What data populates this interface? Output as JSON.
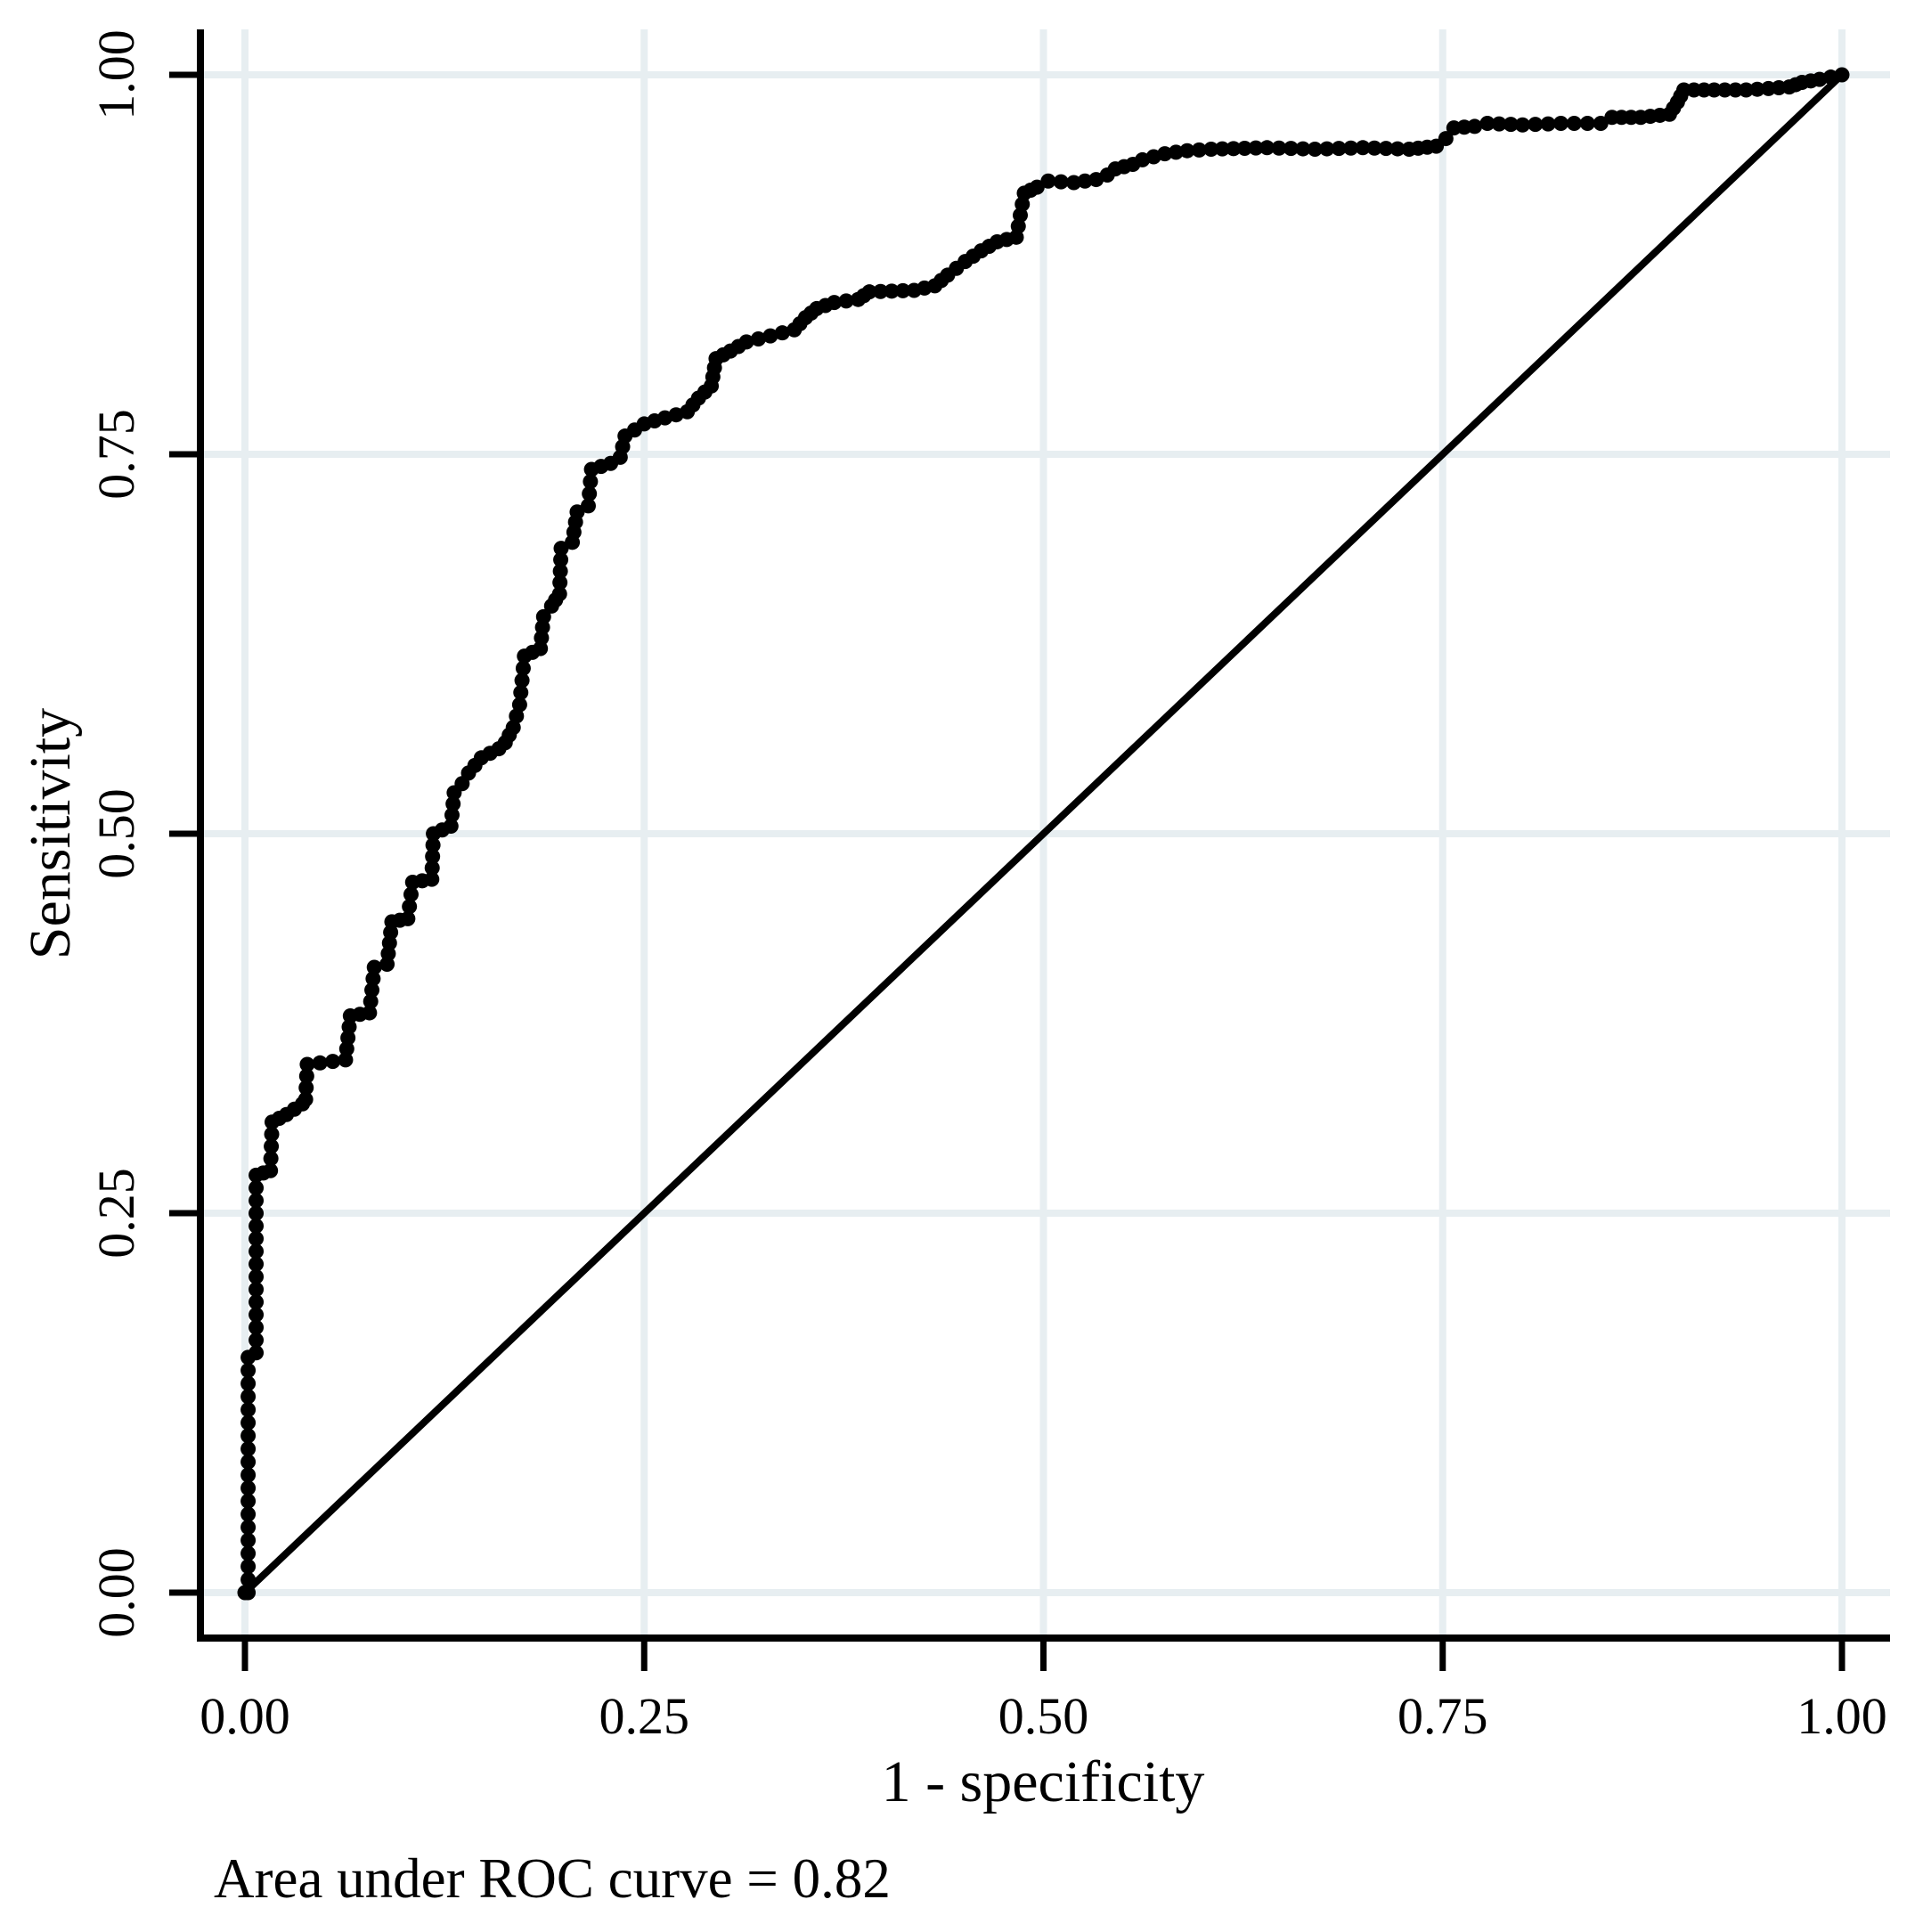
{
  "figure": {
    "caption": "Area under ROC curve = 0.82"
  },
  "chart_data": {
    "type": "line",
    "title": "",
    "xlabel": "1 - specificity",
    "ylabel": "Sensitivity",
    "xlim": [
      0,
      1
    ],
    "ylim": [
      0,
      1
    ],
    "grid": true,
    "legend_position": "none",
    "auc": 0.82,
    "annotations": [
      "Area under ROC curve = 0.82"
    ],
    "xticks": {
      "values": [
        0,
        0.25,
        0.5,
        0.75,
        1
      ],
      "labels": [
        "0.00",
        "0.25",
        "0.50",
        "0.75",
        "1.00"
      ]
    },
    "yticks": {
      "values": [
        0,
        0.25,
        0.5,
        0.75,
        1
      ],
      "labels": [
        "0.00",
        "0.25",
        "0.50",
        "0.75",
        "1.00"
      ]
    },
    "colors": {
      "curve": "#000000",
      "reference_line": "#000000",
      "axis": "#000000",
      "gridline": "#e7eef1",
      "background": "#ffffff"
    },
    "series": [
      {
        "name": "ROC curve",
        "type": "step-scatter",
        "color": "#000000",
        "points": [
          [
            0.0,
            0.0
          ],
          [
            0.002,
            0.0
          ],
          [
            0.002,
            0.155
          ],
          [
            0.007,
            0.158
          ],
          [
            0.007,
            0.275
          ],
          [
            0.016,
            0.278
          ],
          [
            0.017,
            0.31
          ],
          [
            0.026,
            0.315
          ],
          [
            0.036,
            0.322
          ],
          [
            0.038,
            0.325
          ],
          [
            0.039,
            0.348
          ],
          [
            0.063,
            0.351
          ],
          [
            0.066,
            0.38
          ],
          [
            0.078,
            0.382
          ],
          [
            0.081,
            0.412
          ],
          [
            0.089,
            0.414
          ],
          [
            0.092,
            0.442
          ],
          [
            0.102,
            0.444
          ],
          [
            0.105,
            0.468
          ],
          [
            0.117,
            0.47
          ],
          [
            0.118,
            0.5
          ],
          [
            0.129,
            0.505
          ],
          [
            0.131,
            0.527
          ],
          [
            0.136,
            0.533
          ],
          [
            0.14,
            0.54
          ],
          [
            0.148,
            0.55
          ],
          [
            0.159,
            0.556
          ],
          [
            0.163,
            0.56
          ],
          [
            0.168,
            0.57
          ],
          [
            0.172,
            0.585
          ],
          [
            0.175,
            0.617
          ],
          [
            0.185,
            0.622
          ],
          [
            0.187,
            0.643
          ],
          [
            0.192,
            0.65
          ],
          [
            0.197,
            0.658
          ],
          [
            0.198,
            0.688
          ],
          [
            0.205,
            0.692
          ],
          [
            0.208,
            0.712
          ],
          [
            0.215,
            0.716
          ],
          [
            0.217,
            0.74
          ],
          [
            0.229,
            0.744
          ],
          [
            0.235,
            0.748
          ],
          [
            0.238,
            0.762
          ],
          [
            0.25,
            0.77
          ],
          [
            0.263,
            0.774
          ],
          [
            0.277,
            0.778
          ],
          [
            0.284,
            0.787
          ],
          [
            0.292,
            0.795
          ],
          [
            0.295,
            0.813
          ],
          [
            0.304,
            0.818
          ],
          [
            0.314,
            0.824
          ],
          [
            0.329,
            0.828
          ],
          [
            0.344,
            0.832
          ],
          [
            0.351,
            0.84
          ],
          [
            0.358,
            0.846
          ],
          [
            0.369,
            0.85
          ],
          [
            0.384,
            0.852
          ],
          [
            0.391,
            0.857
          ],
          [
            0.419,
            0.858
          ],
          [
            0.432,
            0.861
          ],
          [
            0.44,
            0.868
          ],
          [
            0.451,
            0.877
          ],
          [
            0.461,
            0.884
          ],
          [
            0.471,
            0.89
          ],
          [
            0.483,
            0.893
          ],
          [
            0.488,
            0.922
          ],
          [
            0.496,
            0.926
          ],
          [
            0.503,
            0.93
          ],
          [
            0.519,
            0.929
          ],
          [
            0.533,
            0.931
          ],
          [
            0.54,
            0.934
          ],
          [
            0.545,
            0.938
          ],
          [
            0.556,
            0.941
          ],
          [
            0.562,
            0.944
          ],
          [
            0.576,
            0.948
          ],
          [
            0.59,
            0.95
          ],
          [
            0.605,
            0.951
          ],
          [
            0.64,
            0.952
          ],
          [
            0.67,
            0.951
          ],
          [
            0.7,
            0.952
          ],
          [
            0.729,
            0.951
          ],
          [
            0.746,
            0.953
          ],
          [
            0.752,
            0.958
          ],
          [
            0.757,
            0.965
          ],
          [
            0.77,
            0.966
          ],
          [
            0.778,
            0.968
          ],
          [
            0.8,
            0.967
          ],
          [
            0.824,
            0.968
          ],
          [
            0.849,
            0.968
          ],
          [
            0.856,
            0.972
          ],
          [
            0.874,
            0.972
          ],
          [
            0.892,
            0.974
          ],
          [
            0.897,
            0.982
          ],
          [
            0.901,
            0.99
          ],
          [
            0.92,
            0.99
          ],
          [
            0.94,
            0.99
          ],
          [
            0.954,
            0.991
          ],
          [
            0.967,
            0.992
          ],
          [
            0.975,
            0.995
          ],
          [
            0.986,
            0.997
          ],
          [
            1.0,
            1.0
          ]
        ]
      },
      {
        "name": "Reference diagonal",
        "type": "line",
        "color": "#000000",
        "points": [
          [
            0,
            0
          ],
          [
            1,
            1
          ]
        ]
      }
    ]
  }
}
